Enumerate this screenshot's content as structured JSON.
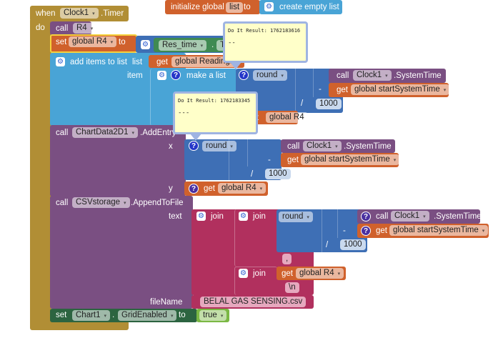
{
  "init_global": {
    "label": "initialize global",
    "name": "list",
    "to": "to",
    "value": "create empty list"
  },
  "event": {
    "when": "when",
    "component": "Clock1",
    "event": ".Timer",
    "do": "do"
  },
  "call_r4": {
    "call": "call",
    "proc": "R4"
  },
  "set_r4": {
    "set": "set",
    "var": "global R4",
    "to": "to",
    "component": "Res_time",
    "dot": ".",
    "prop": "T"
  },
  "add_items": {
    "label": "add items to list",
    "list_label": "list",
    "list_get": "get",
    "list_var": "global Readings",
    "item_label": "item",
    "make_list": "make a list"
  },
  "round1": {
    "op": "round",
    "call": "call",
    "clock": "Clock1",
    "method": ".SystemTime",
    "minus": "-",
    "get": "get",
    "start": "global startSystemTime",
    "div": "/",
    "num": "1000",
    "get2": "get",
    "r4": "global R4"
  },
  "tooltip1": {
    "result": "Do It Result: 1762183616",
    "value": "--"
  },
  "tooltip2": {
    "result": "Do It Result: 1762183345",
    "value": "---"
  },
  "chart_add": {
    "call": "call",
    "component": "ChartData2D1",
    "method": ".AddEntry",
    "x": "x",
    "y": "y",
    "round": "round",
    "call2": "call",
    "clock": "Clock1",
    "sys": ".SystemTime",
    "minus": "-",
    "get": "get",
    "start": "global startSystemTime",
    "div": "/",
    "num": "1000",
    "get_y": "get",
    "r4": "global R4"
  },
  "csv": {
    "call": "call",
    "component": "CSVstorage",
    "method": ".AppendToFile",
    "text": "text",
    "join": "join",
    "join2": "join",
    "round": "round",
    "call2": "call",
    "clock": "Clock1",
    "sys": ".SystemTime",
    "minus": "-",
    "get": "get",
    "start": "global startSystemTime",
    "div": "/",
    "num": "1000",
    "comma": ",",
    "join3": "join",
    "get2": "get",
    "r4": "global R4",
    "newline": "\\n",
    "filename_label": "fileName",
    "filename": "BELAL GAS SENSING.csv"
  },
  "set_grid": {
    "set": "set",
    "component": "Chart1",
    "dot": ".",
    "prop": "GridEnabled",
    "to": "to",
    "value": "true"
  },
  "icons": {
    "gear": "⚙",
    "help": "?",
    "dropdown": "▾"
  }
}
